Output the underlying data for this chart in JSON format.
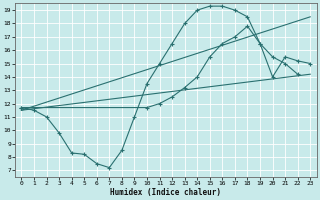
{
  "xlabel": "Humidex (Indice chaleur)",
  "bg_color": "#c8eaea",
  "line_color": "#2a7070",
  "xlim": [
    -0.5,
    23.5
  ],
  "ylim": [
    6.5,
    19.5
  ],
  "xticks": [
    0,
    1,
    2,
    3,
    4,
    5,
    6,
    7,
    8,
    9,
    10,
    11,
    12,
    13,
    14,
    15,
    16,
    17,
    18,
    19,
    20,
    21,
    22,
    23
  ],
  "yticks": [
    7,
    8,
    9,
    10,
    11,
    12,
    13,
    14,
    15,
    16,
    17,
    18,
    19
  ],
  "line1_x": [
    0,
    1,
    2,
    3,
    4,
    5,
    6,
    7,
    8,
    9,
    10,
    11,
    12,
    13,
    14,
    15,
    16,
    17,
    18,
    19,
    20,
    21,
    22
  ],
  "line1_y": [
    11.7,
    11.5,
    11.0,
    9.8,
    8.3,
    8.2,
    7.5,
    7.2,
    8.5,
    11.0,
    13.5,
    15.0,
    16.5,
    18.0,
    19.0,
    19.3,
    19.3,
    19.0,
    18.5,
    16.5,
    15.5,
    15.0,
    14.2
  ],
  "line2_x": [
    0,
    10,
    11,
    12,
    13,
    14,
    15,
    16,
    17,
    18,
    19,
    20,
    21,
    22,
    23
  ],
  "line2_y": [
    11.7,
    11.7,
    12.0,
    12.5,
    13.2,
    14.0,
    15.5,
    16.5,
    17.0,
    17.8,
    16.5,
    14.0,
    15.5,
    15.2,
    15.0
  ],
  "line3_x": [
    0,
    23
  ],
  "line3_y": [
    11.5,
    14.2
  ],
  "line4_x": [
    0,
    23
  ],
  "line4_y": [
    11.5,
    18.5
  ]
}
